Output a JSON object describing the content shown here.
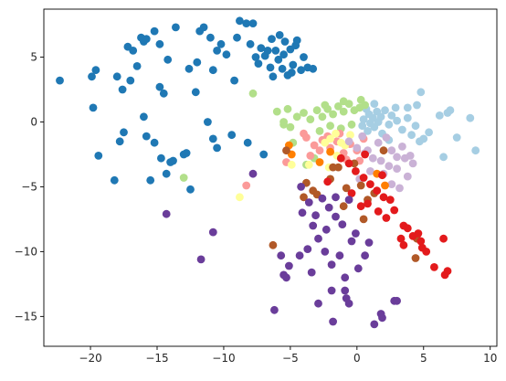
{
  "chart_data": {
    "type": "scatter",
    "title": "",
    "xlabel": "",
    "ylabel": "",
    "xlim": [
      -23.5,
      10.5
    ],
    "ylim": [
      -17.3,
      8.7
    ],
    "xticks": [
      -20,
      -15,
      -10,
      -5,
      0,
      5,
      10
    ],
    "yticks": [
      -15,
      -10,
      -5,
      0,
      5
    ],
    "xtick_labels": [
      "−20",
      "−15",
      "−10",
      "−5",
      "0",
      "5",
      "10"
    ],
    "ytick_labels": [
      "−15",
      "−10",
      "−5",
      "0",
      "5"
    ],
    "grid": false,
    "legend": "none",
    "series": [
      {
        "color": "#1f78b4",
        "points": [
          [
            -22.3,
            3.2
          ],
          [
            -19.9,
            3.5
          ],
          [
            -19.6,
            4.0
          ],
          [
            -19.8,
            1.1
          ],
          [
            -19.4,
            -2.6
          ],
          [
            -18.0,
            3.5
          ],
          [
            -17.6,
            2.5
          ],
          [
            -17.2,
            5.8
          ],
          [
            -17.0,
            3.2
          ],
          [
            -16.8,
            5.5
          ],
          [
            -16.5,
            4.3
          ],
          [
            -16.2,
            6.5
          ],
          [
            -16.0,
            6.2
          ],
          [
            -15.8,
            6.4
          ],
          [
            -15.2,
            7.0
          ],
          [
            -14.8,
            6.0
          ],
          [
            -14.2,
            4.8
          ],
          [
            -13.6,
            7.3
          ],
          [
            -17.8,
            -1.5
          ],
          [
            -17.5,
            -0.8
          ],
          [
            -16.0,
            0.4
          ],
          [
            -15.8,
            -1.1
          ],
          [
            -15.2,
            -1.6
          ],
          [
            -14.8,
            2.7
          ],
          [
            -14.5,
            2.2
          ],
          [
            -14.7,
            -2.8
          ],
          [
            -14.0,
            -3.1
          ],
          [
            -13.0,
            -2.5
          ],
          [
            -12.6,
            4.1
          ],
          [
            -12.0,
            4.6
          ],
          [
            -11.8,
            7.0
          ],
          [
            -11.5,
            7.3
          ],
          [
            -11.0,
            6.5
          ],
          [
            -10.8,
            4.0
          ],
          [
            -10.2,
            6.0
          ],
          [
            -9.8,
            5.2
          ],
          [
            -9.2,
            3.2
          ],
          [
            -8.8,
            7.8
          ],
          [
            -8.3,
            7.6
          ],
          [
            -8.0,
            6.0
          ],
          [
            -7.6,
            5.0
          ],
          [
            -7.2,
            5.7
          ],
          [
            -6.9,
            5.1
          ],
          [
            -6.5,
            4.2
          ],
          [
            -6.1,
            5.5
          ],
          [
            -5.8,
            6.7
          ],
          [
            -5.5,
            5.2
          ],
          [
            -5.2,
            3.6
          ],
          [
            -4.8,
            4.4
          ],
          [
            -4.5,
            6.3
          ],
          [
            -4.2,
            4.0
          ],
          [
            -4.0,
            5.0
          ],
          [
            -3.7,
            4.2
          ],
          [
            -3.3,
            4.1
          ],
          [
            -5.9,
            4.8
          ],
          [
            -6.7,
            5.5
          ],
          [
            -7.4,
            4.5
          ],
          [
            -12.1,
            2.3
          ],
          [
            -12.8,
            -2.4
          ],
          [
            -10.8,
            -1.3
          ],
          [
            -11.2,
            0.0
          ],
          [
            -9.4,
            -1.0
          ],
          [
            -8.2,
            -1.6
          ],
          [
            -7.0,
            -2.5
          ],
          [
            -18.2,
            -4.5
          ],
          [
            -15.5,
            -4.5
          ],
          [
            -14.3,
            -4.0
          ],
          [
            -12.5,
            -5.2
          ],
          [
            -10.5,
            -2.0
          ],
          [
            -13.8,
            -3.0
          ],
          [
            -6.3,
            3.5
          ],
          [
            -5.0,
            5.6
          ],
          [
            -4.6,
            5.9
          ],
          [
            -5.4,
            6.2
          ],
          [
            -6.4,
            6.4
          ],
          [
            -7.8,
            7.6
          ],
          [
            -9.0,
            6.5
          ],
          [
            -10.5,
            5.5
          ],
          [
            -5.6,
            4.1
          ],
          [
            -4.9,
            3.8
          ]
        ]
      },
      {
        "color": "#a6cee3",
        "points": [
          [
            0.5,
            0.2
          ],
          [
            0.9,
            0.6
          ],
          [
            1.2,
            0.3
          ],
          [
            1.5,
            0.8
          ],
          [
            1.8,
            0.4
          ],
          [
            2.1,
            0.9
          ],
          [
            0.4,
            -0.3
          ],
          [
            0.8,
            -0.7
          ],
          [
            1.3,
            -0.4
          ],
          [
            1.9,
            -0.9
          ],
          [
            2.4,
            -0.2
          ],
          [
            2.6,
            0.5
          ],
          [
            3.0,
            0.1
          ],
          [
            3.4,
            -0.6
          ],
          [
            3.8,
            0.3
          ],
          [
            4.1,
            -1.0
          ],
          [
            4.4,
            -0.3
          ],
          [
            4.7,
            -1.5
          ],
          [
            5.0,
            -1.3
          ],
          [
            5.4,
            -0.8
          ],
          [
            6.2,
            0.5
          ],
          [
            6.8,
            0.7
          ],
          [
            7.0,
            0.9
          ],
          [
            8.5,
            0.3
          ],
          [
            8.9,
            -2.2
          ],
          [
            7.5,
            -1.2
          ],
          [
            6.5,
            -2.7
          ],
          [
            4.5,
            1.3
          ],
          [
            3.8,
            1.1
          ],
          [
            2.4,
            -1.4
          ],
          [
            1.3,
            1.4
          ],
          [
            0.7,
            1.0
          ],
          [
            4.8,
            2.3
          ],
          [
            1.0,
            -0.1
          ],
          [
            1.6,
            0.0
          ],
          [
            2.9,
            1.1
          ]
        ]
      },
      {
        "color": "#b2df8a",
        "points": [
          [
            -6.0,
            0.8
          ],
          [
            -5.5,
            0.0
          ],
          [
            -5.0,
            -0.4
          ],
          [
            -4.5,
            0.4
          ],
          [
            -4.0,
            0.7
          ],
          [
            -3.5,
            0.2
          ],
          [
            -3.0,
            0.9
          ],
          [
            -2.6,
            0.4
          ],
          [
            -2.2,
            1.0
          ],
          [
            -1.8,
            0.6
          ],
          [
            -1.4,
            1.2
          ],
          [
            -1.0,
            0.8
          ],
          [
            -0.6,
            1.4
          ],
          [
            -0.2,
            0.9
          ],
          [
            0.2,
            1.1
          ],
          [
            0.6,
            1.3
          ],
          [
            -2.8,
            -0.7
          ],
          [
            -2.0,
            -0.3
          ],
          [
            -1.2,
            -0.5
          ],
          [
            -0.4,
            -0.2
          ],
          [
            -5.5,
            -0.2
          ],
          [
            -5.2,
            1.0
          ],
          [
            -7.8,
            2.2
          ],
          [
            -13.0,
            -4.3
          ],
          [
            -3.8,
            -3.3
          ],
          [
            -4.8,
            -1.6
          ],
          [
            -3.2,
            -2.8
          ],
          [
            -1.0,
            1.6
          ],
          [
            0.3,
            1.7
          ],
          [
            -2.4,
            1.3
          ]
        ]
      },
      {
        "color": "#fb9a99",
        "points": [
          [
            -3.8,
            -1.2
          ],
          [
            -3.2,
            -1.8
          ],
          [
            -2.6,
            -1.4
          ],
          [
            -2.0,
            -2.0
          ],
          [
            -1.5,
            -1.5
          ],
          [
            -1.0,
            -2.4
          ],
          [
            -0.5,
            -1.7
          ],
          [
            0.0,
            -2.2
          ],
          [
            0.5,
            -1.3
          ],
          [
            -3.5,
            -2.6
          ],
          [
            -2.8,
            -2.2
          ],
          [
            -2.2,
            -1.1
          ],
          [
            -1.3,
            -0.9
          ],
          [
            -0.8,
            -2.9
          ],
          [
            0.2,
            -3.0
          ],
          [
            -5.3,
            -3.1
          ],
          [
            -8.3,
            -4.9
          ],
          [
            -4.0,
            -0.9
          ]
        ]
      },
      {
        "color": "#ffff99",
        "points": [
          [
            -2.4,
            -1.6
          ],
          [
            -2.0,
            -1.3
          ],
          [
            -1.5,
            -2.6
          ],
          [
            -0.9,
            -1.8
          ],
          [
            -0.5,
            -1.0
          ],
          [
            -8.8,
            -5.8
          ],
          [
            -4.9,
            -3.3
          ],
          [
            -3.6,
            -3.3
          ],
          [
            -2.1,
            -3.5
          ],
          [
            -1.6,
            -0.9
          ],
          [
            -1.2,
            -1.6
          ]
        ]
      },
      {
        "color": "#cab2d6",
        "points": [
          [
            -0.6,
            -1.5
          ],
          [
            0.0,
            -2.0
          ],
          [
            0.6,
            -2.4
          ],
          [
            1.2,
            -2.8
          ],
          [
            1.8,
            -3.0
          ],
          [
            2.4,
            -3.4
          ],
          [
            3.0,
            -3.6
          ],
          [
            3.6,
            -2.8
          ],
          [
            4.2,
            -3.2
          ],
          [
            0.4,
            -1.1
          ],
          [
            1.6,
            -1.6
          ],
          [
            2.6,
            -2.2
          ],
          [
            3.4,
            -1.9
          ],
          [
            4.0,
            -2.6
          ],
          [
            2.0,
            -4.0
          ],
          [
            1.0,
            -3.8
          ],
          [
            0.2,
            -4.4
          ],
          [
            2.6,
            -4.8
          ],
          [
            3.8,
            -4.2
          ],
          [
            3.2,
            -5.1
          ],
          [
            0.8,
            -2.2
          ],
          [
            2.2,
            -1.2
          ],
          [
            3.0,
            -2.7
          ]
        ]
      },
      {
        "color": "#ff7f00",
        "points": [
          [
            -5.1,
            -1.8
          ],
          [
            -4.9,
            -2.5
          ],
          [
            -2.0,
            -2.3
          ],
          [
            -2.8,
            -3.1
          ],
          [
            1.5,
            -4.0
          ],
          [
            2.1,
            -4.9
          ]
        ]
      },
      {
        "color": "#b15928",
        "points": [
          [
            -5.3,
            -2.2
          ],
          [
            -3.8,
            -4.7
          ],
          [
            -3.3,
            -5.3
          ],
          [
            -2.0,
            -4.4
          ],
          [
            -1.4,
            -3.5
          ],
          [
            -0.8,
            -5.1
          ],
          [
            -0.2,
            -3.2
          ],
          [
            0.3,
            -4.9
          ],
          [
            0.8,
            -6.0
          ],
          [
            1.3,
            -5.5
          ],
          [
            -4.0,
            -5.8
          ],
          [
            -3.0,
            -5.6
          ],
          [
            -1.0,
            -6.5
          ],
          [
            2.0,
            -2.2
          ],
          [
            4.5,
            -9.0
          ],
          [
            4.4,
            -10.5
          ],
          [
            -6.3,
            -9.5
          ],
          [
            -1.8,
            -3.5
          ],
          [
            0.5,
            -7.5
          ]
        ]
      },
      {
        "color": "#e31a1c",
        "points": [
          [
            -1.2,
            -2.8
          ],
          [
            -0.6,
            -3.2
          ],
          [
            -0.1,
            -3.8
          ],
          [
            0.5,
            -4.3
          ],
          [
            1.0,
            -4.8
          ],
          [
            1.5,
            -5.3
          ],
          [
            2.0,
            -5.8
          ],
          [
            2.5,
            -6.0
          ],
          [
            0.8,
            -6.3
          ],
          [
            1.6,
            -6.9
          ],
          [
            2.2,
            -7.4
          ],
          [
            2.8,
            -6.8
          ],
          [
            -0.4,
            -5.5
          ],
          [
            0.3,
            -6.5
          ],
          [
            -2.2,
            -4.6
          ],
          [
            3.5,
            -8.0
          ],
          [
            3.8,
            -8.2
          ],
          [
            4.2,
            -8.8
          ],
          [
            4.6,
            -8.6
          ],
          [
            4.8,
            -9.2
          ],
          [
            5.2,
            -10.0
          ],
          [
            3.3,
            -9.0
          ],
          [
            3.5,
            -9.5
          ],
          [
            5.8,
            -11.2
          ],
          [
            6.5,
            -9.0
          ],
          [
            6.8,
            -11.5
          ],
          [
            6.6,
            -11.8
          ],
          [
            0.6,
            -2.5
          ],
          [
            1.9,
            -4.1
          ],
          [
            4.9,
            -9.7
          ]
        ]
      },
      {
        "color": "#6a3d9a",
        "points": [
          [
            -4.2,
            -5.0
          ],
          [
            -3.6,
            -6.2
          ],
          [
            -3.1,
            -7.2
          ],
          [
            -2.6,
            -5.9
          ],
          [
            -2.1,
            -6.6
          ],
          [
            -1.6,
            -7.3
          ],
          [
            -1.1,
            -7.9
          ],
          [
            -0.6,
            -6.0
          ],
          [
            -0.1,
            -8.6
          ],
          [
            -4.1,
            -7.0
          ],
          [
            -3.3,
            -8.0
          ],
          [
            -2.9,
            -9.0
          ],
          [
            -2.4,
            -10.0
          ],
          [
            -1.9,
            -11.0
          ],
          [
            -1.3,
            -10.3
          ],
          [
            -0.9,
            -12.0
          ],
          [
            -0.4,
            -9.2
          ],
          [
            0.1,
            -11.3
          ],
          [
            0.6,
            -10.3
          ],
          [
            -5.7,
            -10.3
          ],
          [
            -5.3,
            -12.0
          ],
          [
            -5.1,
            -11.1
          ],
          [
            -4.3,
            -10.3
          ],
          [
            -3.4,
            -11.6
          ],
          [
            -6.2,
            -14.5
          ],
          [
            -5.5,
            -11.8
          ],
          [
            -2.9,
            -14.0
          ],
          [
            -1.9,
            -13.0
          ],
          [
            -1.8,
            -15.4
          ],
          [
            -0.6,
            -14.0
          ],
          [
            -0.8,
            -13.6
          ],
          [
            -0.9,
            -13.0
          ],
          [
            1.3,
            -15.6
          ],
          [
            1.8,
            -14.8
          ],
          [
            1.9,
            -15.1
          ],
          [
            2.8,
            -13.8
          ],
          [
            3.0,
            -13.8
          ],
          [
            -14.3,
            -7.1
          ],
          [
            -10.8,
            -8.5
          ],
          [
            -11.7,
            -10.6
          ],
          [
            -7.8,
            -4.0
          ],
          [
            -1.6,
            -5.8
          ],
          [
            -2.3,
            -8.3
          ],
          [
            0.9,
            -9.3
          ],
          [
            -3.7,
            -9.8
          ]
        ]
      }
    ]
  }
}
